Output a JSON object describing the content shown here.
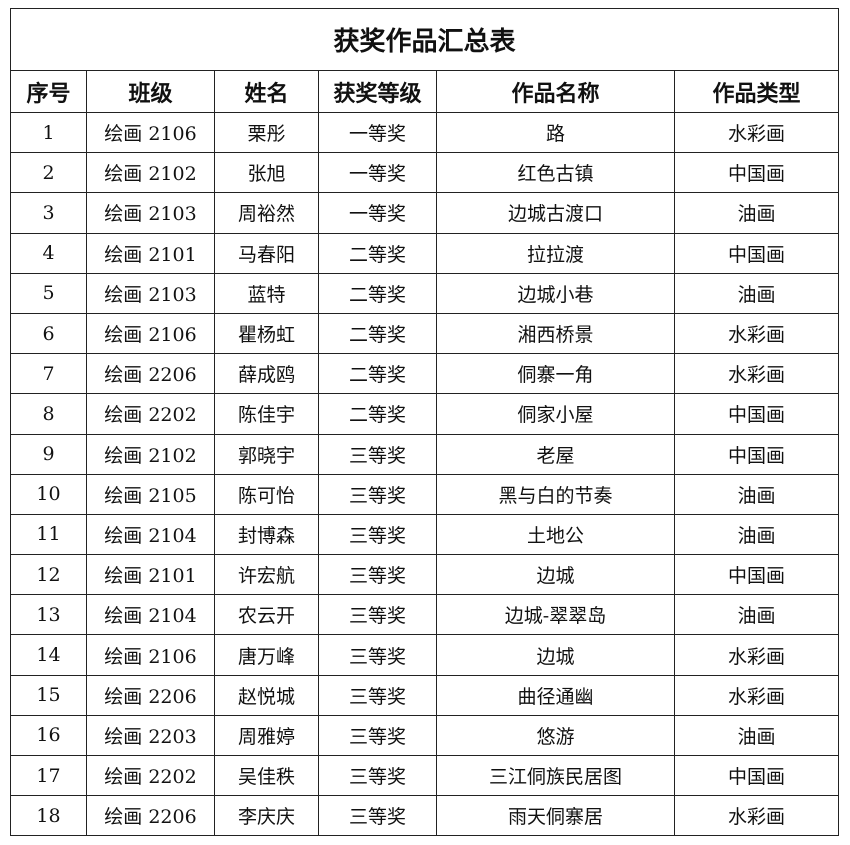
{
  "title": "获奖作品汇总表",
  "headers": [
    "序号",
    "班级",
    "姓名",
    "获奖等级",
    "作品名称",
    "作品类型"
  ],
  "rows": [
    [
      "1",
      "绘画 2106",
      "栗彤",
      "一等奖",
      "路",
      "水彩画"
    ],
    [
      "2",
      "绘画 2102",
      "张旭",
      "一等奖",
      "红色古镇",
      "中国画"
    ],
    [
      "3",
      "绘画 2103",
      "周裕然",
      "一等奖",
      "边城古渡口",
      "油画"
    ],
    [
      "4",
      "绘画 2101",
      "马春阳",
      "二等奖",
      "拉拉渡",
      "中国画"
    ],
    [
      "5",
      "绘画 2103",
      "蓝特",
      "二等奖",
      "边城小巷",
      "油画"
    ],
    [
      "6",
      "绘画 2106",
      "瞿杨虹",
      "二等奖",
      "湘西桥景",
      "水彩画"
    ],
    [
      "7",
      "绘画 2206",
      "薛成鸥",
      "二等奖",
      "侗寨一角",
      "水彩画"
    ],
    [
      "8",
      "绘画 2202",
      "陈佳宇",
      "二等奖",
      "侗家小屋",
      "中国画"
    ],
    [
      "9",
      "绘画 2102",
      "郭晓宇",
      "三等奖",
      "老屋",
      "中国画"
    ],
    [
      "10",
      "绘画 2105",
      "陈可怡",
      "三等奖",
      "黑与白的节奏",
      "油画"
    ],
    [
      "11",
      "绘画 2104",
      "封博森",
      "三等奖",
      "土地公",
      "油画"
    ],
    [
      "12",
      "绘画 2101",
      "许宏航",
      "三等奖",
      "边城",
      "中国画"
    ],
    [
      "13",
      "绘画 2104",
      "农云开",
      "三等奖",
      "边城-翠翠岛",
      "油画"
    ],
    [
      "14",
      "绘画 2106",
      "唐万峰",
      "三等奖",
      "边城",
      "水彩画"
    ],
    [
      "15",
      "绘画 2206",
      "赵悦城",
      "三等奖",
      "曲径通幽",
      "水彩画"
    ],
    [
      "16",
      "绘画 2203",
      "周雅婷",
      "三等奖",
      "悠游",
      "油画"
    ],
    [
      "17",
      "绘画 2202",
      "吴佳秩",
      "三等奖",
      "三江侗族民居图",
      "中国画"
    ],
    [
      "18",
      "绘画 2206",
      "李庆庆",
      "三等奖",
      "雨天侗寨居",
      "水彩画"
    ]
  ]
}
